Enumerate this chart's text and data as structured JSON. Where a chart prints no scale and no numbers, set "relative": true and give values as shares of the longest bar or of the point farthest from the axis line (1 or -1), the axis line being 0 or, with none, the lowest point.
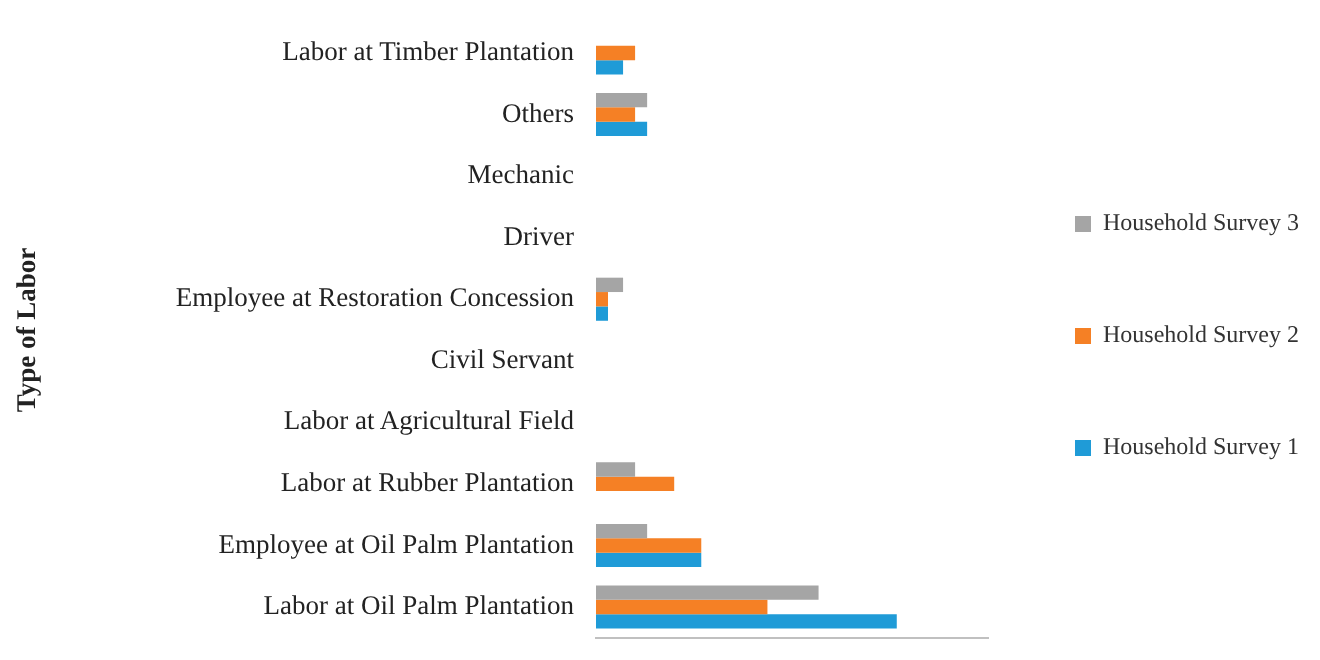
{
  "chart_data": {
    "type": "bar",
    "orientation": "horizontal",
    "relative": true,
    "ylabel": "Type of Labor",
    "categories": [
      "Labor at Timber Plantation",
      "Others",
      "Mechanic",
      "Driver",
      "Employee at Restoration Concession",
      "Civil Servant",
      "Labor at Agricultural Field",
      "Labor at Rubber Plantation",
      "Employee at Oil Palm Plantation",
      "Labor at Oil Palm Plantation"
    ],
    "series": [
      {
        "name": "Household Survey 3",
        "color": "#a5a5a5",
        "values": [
          0,
          0.17,
          0,
          0,
          0.09,
          0,
          0,
          0.13,
          0.17,
          0.74
        ]
      },
      {
        "name": "Household Survey 2",
        "color": "#f58025",
        "values": [
          0.13,
          0.13,
          0,
          0,
          0.04,
          0,
          0,
          0.26,
          0.35,
          0.57
        ]
      },
      {
        "name": "Household Survey 1",
        "color": "#1f9bd7",
        "values": [
          0.09,
          0.17,
          0,
          0,
          0.04,
          0,
          0,
          0,
          0.35,
          1
        ]
      }
    ],
    "legend": "right"
  }
}
